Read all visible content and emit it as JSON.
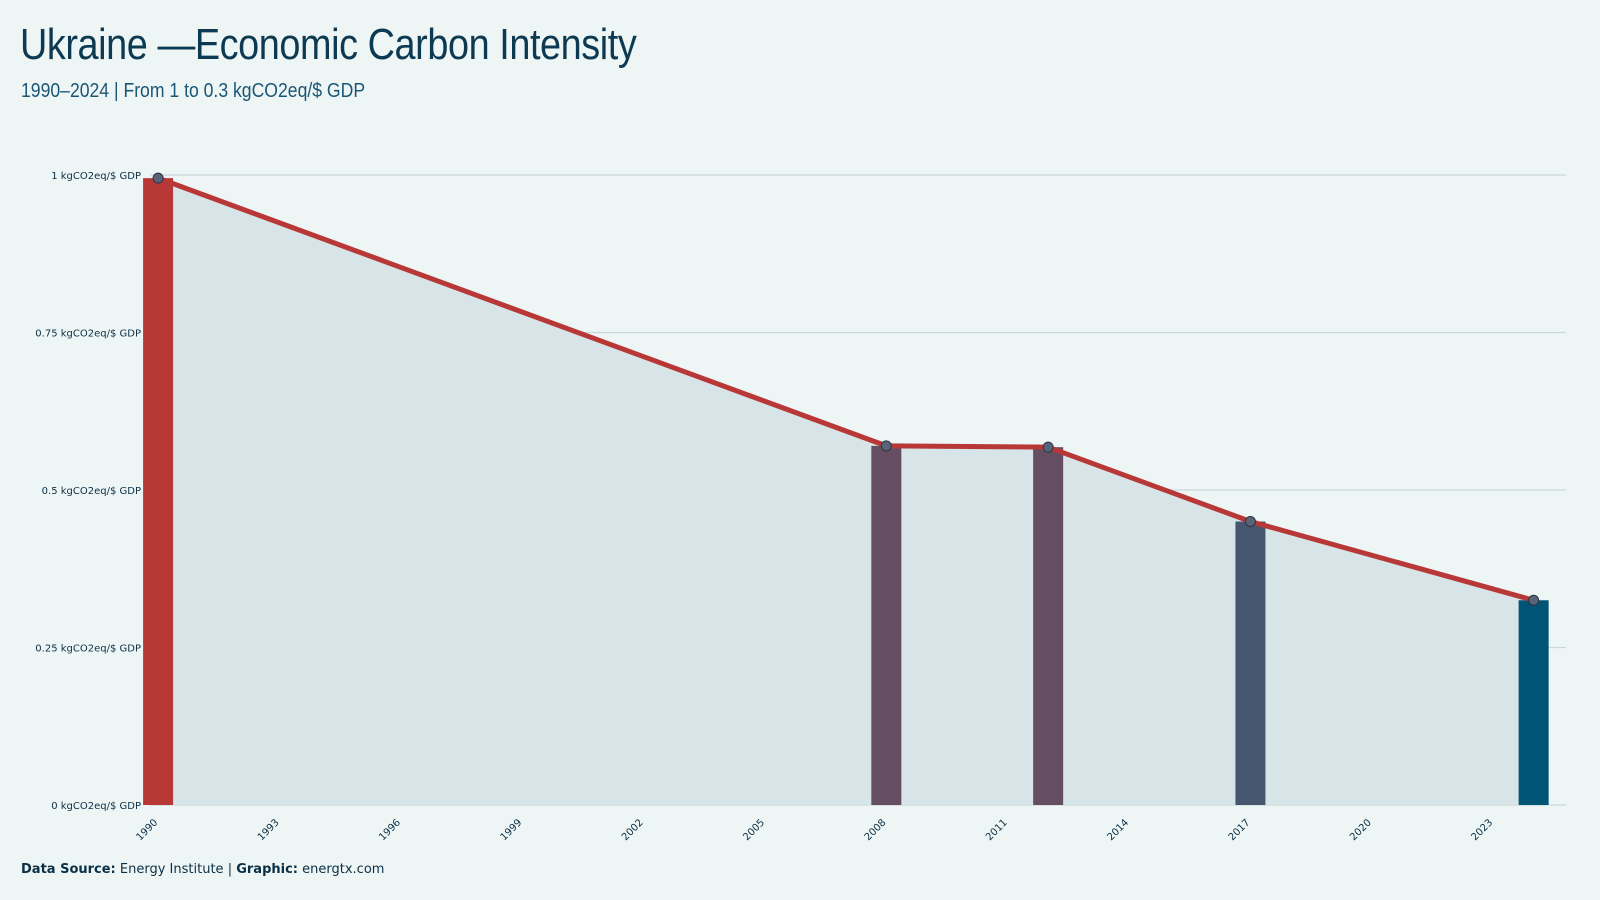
{
  "title": "Ukraine —Economic Carbon Intensity",
  "subtitle": "1990–2024 | From 1 to 0.3 kgCO2eq/$ GDP",
  "source": {
    "label": "Data Source:",
    "value": "Energy Institute",
    "separator": "|",
    "graphic_label": "Graphic:",
    "graphic_value": "energtx.com"
  },
  "chart_data": {
    "type": "bar",
    "x": [
      1990,
      2008,
      2012,
      2017,
      2024
    ],
    "values": [
      0.995,
      0.57,
      0.568,
      0.45,
      0.325
    ],
    "bar_colors": [
      "#b83838",
      "#664e62",
      "#664e62",
      "#46566f",
      "#005577"
    ],
    "line_color": "#b83838",
    "area_color": "#d7e4e8",
    "ylim": [
      0,
      1
    ],
    "xlim": [
      1989.8,
      2024.8
    ],
    "yticks": [
      {
        "value": 1,
        "label": "1 kgCO2eq/$ GDP"
      },
      {
        "value": 0.75,
        "label": "0.75 kgCO2eq/$ GDP"
      },
      {
        "value": 0.5,
        "label": "0.5 kgCO2eq/$ GDP"
      },
      {
        "value": 0.25,
        "label": "0.25 kgCO2eq/$ GDP"
      },
      {
        "value": 0,
        "label": "0 kgCO2eq/$ GDP"
      }
    ],
    "xticks": [
      1990,
      1993,
      1996,
      1999,
      2002,
      2005,
      2008,
      2011,
      2014,
      2017,
      2020,
      2023
    ],
    "grid": true
  }
}
